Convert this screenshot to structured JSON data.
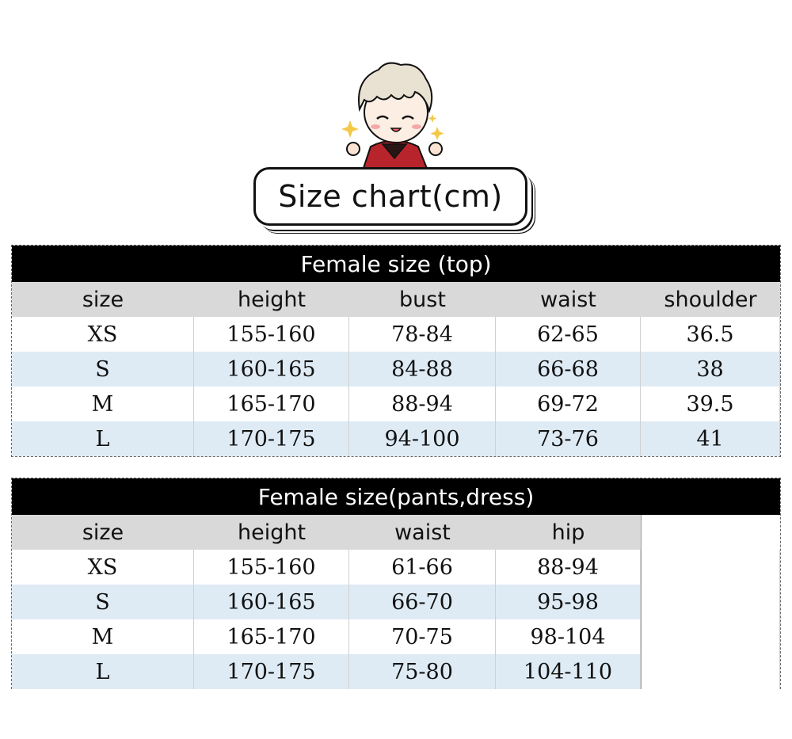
{
  "title": "Size chart(cm)",
  "top_table": {
    "heading": "Female size (top)",
    "columns": [
      "size",
      "height",
      "bust",
      "waist",
      "shoulder"
    ],
    "rows": [
      [
        "XS",
        "155-160",
        "78-84",
        "62-65",
        "36.5"
      ],
      [
        "S",
        "160-165",
        "84-88",
        "66-68",
        "38"
      ],
      [
        "M",
        "165-170",
        "88-94",
        "69-72",
        "39.5"
      ],
      [
        "L",
        "170-175",
        "94-100",
        "73-76",
        "41"
      ]
    ]
  },
  "bottom_table": {
    "heading": "Female size(pants,dress)",
    "columns": [
      "size",
      "height",
      "waist",
      "hip"
    ],
    "rows": [
      [
        "XS",
        "155-160",
        "61-66",
        "88-94"
      ],
      [
        "S",
        "160-165",
        "66-70",
        "95-98"
      ],
      [
        "M",
        "165-170",
        "70-75",
        "98-104"
      ],
      [
        "L",
        "170-175",
        "75-80",
        "104-110"
      ]
    ]
  },
  "colors": {
    "header_bar": "#000000",
    "column_header": "#d9d9d9",
    "stripe": "#deebf5"
  }
}
